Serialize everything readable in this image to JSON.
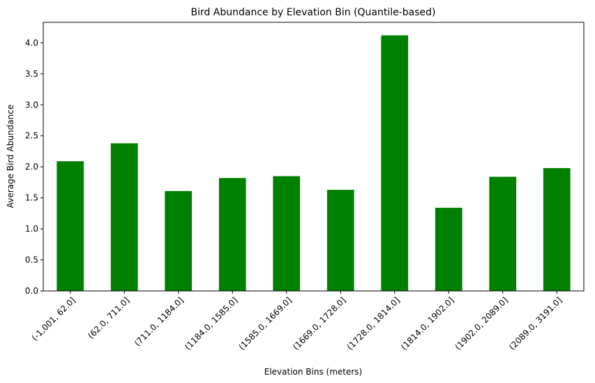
{
  "chart_data": {
    "type": "bar",
    "title": "Bird Abundance by Elevation Bin (Quantile-based)",
    "xlabel": "Elevation Bins (meters)",
    "ylabel": "Average Bird Abundance",
    "categories": [
      "(-1,001, 62.0]",
      "(62.0, 711.0]",
      "(711.0, 1184.0]",
      "(1184.0, 1585.0]",
      "(1585.0, 1669.0]",
      "(1669.0, 1728.0]",
      "(1728.0, 1814.0]",
      "(1814.0, 1902.0]",
      "(1902.0, 2089.0]",
      "(2089.0, 3191.0]"
    ],
    "values": [
      2.09,
      2.38,
      1.61,
      1.82,
      1.85,
      1.63,
      4.12,
      1.34,
      1.84,
      1.98
    ],
    "ylim": [
      0,
      4.33
    ],
    "yticks": [
      0.0,
      0.5,
      1.0,
      1.5,
      2.0,
      2.5,
      3.0,
      3.5,
      4.0
    ],
    "ytick_labels": [
      "0.0",
      "0.5",
      "1.0",
      "1.5",
      "2.0",
      "2.5",
      "3.0",
      "3.5",
      "4.0"
    ],
    "bar_color": "#008000",
    "grid": false,
    "legend": "none"
  }
}
